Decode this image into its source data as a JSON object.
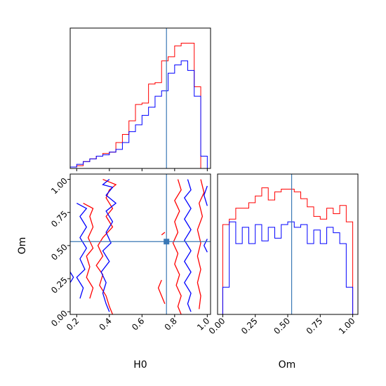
{
  "chart_data": [
    {
      "type": "histogram",
      "panel": "H0 marginal",
      "x_bins": [
        0.16,
        0.2,
        0.24,
        0.28,
        0.32,
        0.36,
        0.4,
        0.44,
        0.48,
        0.52,
        0.56,
        0.6,
        0.64,
        0.68,
        0.72,
        0.76,
        0.8,
        0.84,
        0.88,
        0.92,
        0.96,
        1.0
      ],
      "xlim": [
        0.16,
        1.02
      ],
      "ylim": [
        0,
        1.0
      ],
      "truth": 0.75,
      "series": [
        {
          "color": "#ff0000",
          "values": [
            0.01,
            0.02,
            0.05,
            0.07,
            0.09,
            0.11,
            0.12,
            0.19,
            0.25,
            0.35,
            0.47,
            0.48,
            0.62,
            0.63,
            0.79,
            0.82,
            0.9,
            0.92,
            0.92,
            0.6,
            0.0
          ]
        },
        {
          "color": "#0000ff",
          "values": [
            0.01,
            0.03,
            0.05,
            0.07,
            0.09,
            0.1,
            0.12,
            0.14,
            0.19,
            0.27,
            0.32,
            0.39,
            0.45,
            0.53,
            0.57,
            0.7,
            0.76,
            0.79,
            0.72,
            0.53,
            0.09
          ]
        }
      ]
    },
    {
      "type": "contour",
      "panel": "H0 vs Om",
      "xlabel": "H0",
      "ylabel": "Om",
      "xlim": [
        0.16,
        1.02
      ],
      "ylim": [
        -0.02,
        1.04
      ],
      "x_ticks": [
        "0.2",
        "0.4",
        "0.6",
        "0.8",
        "1.0"
      ],
      "x_tick_values": [
        0.2,
        0.4,
        0.6,
        0.8,
        1.0
      ],
      "y_ticks": [
        "0.00",
        "0.25",
        "0.50",
        "0.75",
        "1.00"
      ],
      "y_tick_values": [
        0.0,
        0.25,
        0.5,
        0.75,
        1.0
      ],
      "truth": [
        0.75,
        0.53
      ],
      "series": [
        {
          "color": "#ff0000",
          "contours": [
            [
              [
                0.36,
                1.0
              ],
              [
                0.4,
                0.98
              ],
              [
                0.44,
                0.96
              ],
              [
                0.4,
                0.92
              ],
              [
                0.38,
                0.86
              ],
              [
                0.42,
                0.78
              ],
              [
                0.38,
                0.72
              ],
              [
                0.42,
                0.64
              ],
              [
                0.36,
                0.56
              ],
              [
                0.33,
                0.5
              ],
              [
                0.36,
                0.42
              ],
              [
                0.32,
                0.35
              ],
              [
                0.36,
                0.28
              ],
              [
                0.34,
                0.2
              ],
              [
                0.38,
                0.12
              ],
              [
                0.4,
                0.04
              ],
              [
                0.42,
                -0.02
              ]
            ],
            [
              [
                0.24,
                0.82
              ],
              [
                0.3,
                0.78
              ],
              [
                0.28,
                0.72
              ],
              [
                0.3,
                0.64
              ],
              [
                0.27,
                0.56
              ],
              [
                0.3,
                0.48
              ],
              [
                0.26,
                0.42
              ],
              [
                0.28,
                0.34
              ],
              [
                0.26,
                0.26
              ],
              [
                0.3,
                0.18
              ],
              [
                0.28,
                0.1
              ]
            ],
            [
              [
                0.82,
                1.0
              ],
              [
                0.84,
                0.92
              ],
              [
                0.8,
                0.84
              ],
              [
                0.83,
                0.76
              ],
              [
                0.8,
                0.68
              ],
              [
                0.82,
                0.6
              ],
              [
                0.79,
                0.52
              ],
              [
                0.82,
                0.44
              ],
              [
                0.8,
                0.36
              ],
              [
                0.83,
                0.28
              ],
              [
                0.81,
                0.2
              ],
              [
                0.84,
                0.12
              ],
              [
                0.82,
                0.04
              ],
              [
                0.84,
                -0.02
              ]
            ],
            [
              [
                0.96,
                1.0
              ],
              [
                0.98,
                0.9
              ],
              [
                0.95,
                0.82
              ],
              [
                0.97,
                0.72
              ],
              [
                0.94,
                0.62
              ],
              [
                0.96,
                0.52
              ],
              [
                0.94,
                0.42
              ],
              [
                0.96,
                0.32
              ],
              [
                0.94,
                0.22
              ],
              [
                0.96,
                0.12
              ],
              [
                0.95,
                0.02
              ]
            ],
            [
              [
                0.72,
                0.58
              ],
              [
                0.74,
                0.6
              ]
            ],
            [
              [
                0.72,
                0.24
              ],
              [
                0.7,
                0.18
              ],
              [
                0.72,
                0.12
              ],
              [
                0.74,
                0.06
              ]
            ]
          ]
        },
        {
          "color": "#0000ff",
          "contours": [
            [
              [
                0.4,
                1.0
              ],
              [
                0.36,
                0.96
              ],
              [
                0.42,
                0.94
              ],
              [
                0.38,
                0.88
              ],
              [
                0.44,
                0.82
              ],
              [
                0.38,
                0.76
              ],
              [
                0.42,
                0.68
              ],
              [
                0.38,
                0.6
              ],
              [
                0.41,
                0.52
              ],
              [
                0.36,
                0.46
              ],
              [
                0.4,
                0.38
              ],
              [
                0.35,
                0.3
              ],
              [
                0.38,
                0.22
              ],
              [
                0.36,
                0.14
              ],
              [
                0.38,
                0.06
              ],
              [
                0.4,
                0.0
              ]
            ],
            [
              [
                0.2,
                0.82
              ],
              [
                0.26,
                0.78
              ],
              [
                0.22,
                0.72
              ],
              [
                0.26,
                0.64
              ],
              [
                0.22,
                0.56
              ],
              [
                0.26,
                0.48
              ],
              [
                0.22,
                0.4
              ],
              [
                0.25,
                0.32
              ],
              [
                0.2,
                0.26
              ],
              [
                0.24,
                0.18
              ],
              [
                0.22,
                0.1
              ]
            ],
            [
              [
                0.88,
                1.0
              ],
              [
                0.9,
                0.92
              ],
              [
                0.86,
                0.86
              ],
              [
                0.9,
                0.78
              ],
              [
                0.86,
                0.7
              ],
              [
                0.9,
                0.62
              ],
              [
                0.86,
                0.54
              ],
              [
                0.9,
                0.46
              ],
              [
                0.86,
                0.38
              ],
              [
                0.9,
                0.3
              ],
              [
                0.86,
                0.22
              ],
              [
                0.9,
                0.14
              ],
              [
                0.88,
                0.06
              ],
              [
                0.9,
                0.0
              ]
            ],
            [
              [
                1.0,
                0.95
              ],
              [
                0.98,
                0.88
              ],
              [
                1.0,
                0.8
              ]
            ],
            [
              [
                1.0,
                0.55
              ],
              [
                0.98,
                0.5
              ],
              [
                1.0,
                0.45
              ]
            ],
            [
              [
                0.16,
                0.3
              ],
              [
                0.18,
                0.26
              ],
              [
                0.16,
                0.22
              ]
            ]
          ]
        }
      ]
    },
    {
      "type": "histogram",
      "panel": "Om marginal",
      "xlabel": "Om",
      "x_bins": [
        0.0,
        0.05,
        0.1,
        0.15,
        0.2,
        0.25,
        0.3,
        0.35,
        0.4,
        0.45,
        0.5,
        0.55,
        0.6,
        0.65,
        0.7,
        0.75,
        0.8,
        0.85,
        0.9,
        0.95,
        1.0
      ],
      "xlim": [
        -0.04,
        1.04
      ],
      "ylim": [
        0,
        1.0
      ],
      "x_ticks": [
        "0.00",
        "0.25",
        "0.50",
        "0.75",
        "1.00"
      ],
      "x_tick_values": [
        0.0,
        0.25,
        0.5,
        0.75,
        1.0
      ],
      "truth": 0.53,
      "series": [
        {
          "color": "#ff0000",
          "values": [
            0.66,
            0.7,
            0.78,
            0.78,
            0.82,
            0.87,
            0.93,
            0.84,
            0.9,
            0.92,
            0.92,
            0.9,
            0.85,
            0.79,
            0.72,
            0.7,
            0.78,
            0.74,
            0.8,
            0.68
          ]
        },
        {
          "color": "#0000ff",
          "values": [
            0.2,
            0.68,
            0.52,
            0.64,
            0.52,
            0.66,
            0.54,
            0.64,
            0.56,
            0.66,
            0.68,
            0.64,
            0.66,
            0.52,
            0.62,
            0.52,
            0.64,
            0.6,
            0.52,
            0.2
          ]
        }
      ]
    }
  ]
}
